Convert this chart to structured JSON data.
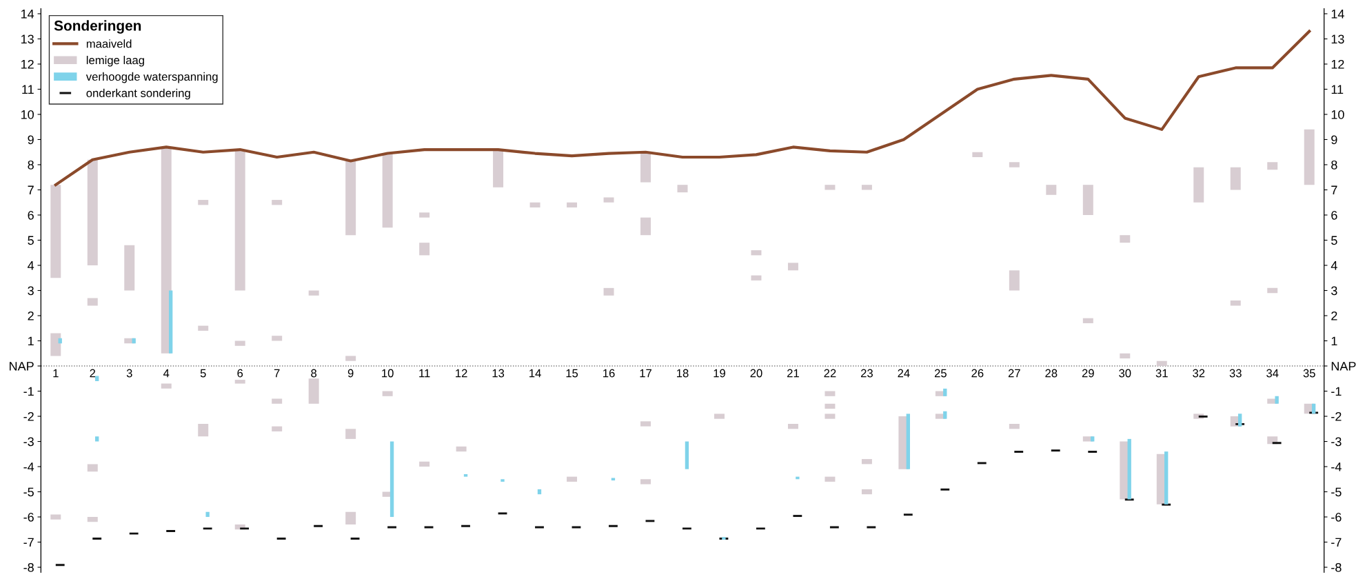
{
  "chart_data": {
    "type": "bar",
    "legend_title": "Sonderingen",
    "legend": "top left",
    "xlim": [
      0.6,
      35.4
    ],
    "xticks": [
      1,
      2,
      3,
      4,
      5,
      6,
      7,
      8,
      9,
      10,
      11,
      12,
      13,
      14,
      15,
      16,
      17,
      18,
      19,
      20,
      21,
      22,
      23,
      24,
      25,
      26,
      27,
      28,
      29,
      30,
      31,
      32,
      33,
      34,
      35
    ],
    "ylim": [
      -8.2,
      14.2
    ],
    "yticks": [
      -8,
      -7,
      -6,
      -5,
      -4,
      -3,
      -2,
      -1,
      {
        "value": 0,
        "label": "NAP"
      },
      1,
      2,
      3,
      4,
      5,
      6,
      7,
      8,
      9,
      10,
      11,
      12,
      13,
      14
    ],
    "y2lim": [
      -8.2,
      14.2
    ],
    "y2ticks": [
      -8,
      -7,
      -6,
      -5,
      -4,
      -3,
      -2,
      -1,
      {
        "value": 0,
        "label": "NAP"
      },
      1,
      2,
      3,
      4,
      5,
      6,
      7,
      8,
      9,
      10,
      11,
      12,
      13,
      14
    ],
    "ref_lines": [
      {
        "axis": "y",
        "value": 0,
        "color": "#777777",
        "line_style": "dotted"
      }
    ],
    "series": [
      {
        "name": "lemige laag",
        "color": "#d8cdd2",
        "x": [
          1,
          2,
          3,
          4,
          5,
          6,
          7,
          8,
          9,
          10,
          11,
          12,
          13,
          14,
          15,
          16,
          17,
          18,
          19,
          20,
          21,
          22,
          23,
          24,
          25,
          26,
          27,
          28,
          29,
          30,
          31,
          32,
          33,
          34,
          35
        ],
        "base": [
          3.5,
          4.0,
          3.0,
          0.5,
          6.4,
          3.0,
          6.4,
          2.8,
          5.2,
          5.5,
          5.9,
          -3.4,
          7.1,
          6.3,
          6.3,
          6.5,
          7.3,
          6.9,
          -2.1,
          4.4,
          3.8,
          7.0,
          7.0,
          -4.1,
          -1.2,
          8.3,
          7.9,
          6.8,
          6.0,
          4.9,
          0.0,
          6.5,
          7.0,
          7.8,
          7.2
        ],
        "values": [
          3.7,
          4.2,
          1.8,
          8.2,
          0.2,
          5.6,
          0.2,
          0.2,
          2.95,
          2.95,
          0.2,
          0.2,
          1.5,
          0.2,
          0.2,
          0.2,
          1.2,
          0.3,
          0.2,
          0.2,
          0.3,
          0.2,
          0.2,
          2.1,
          0.2,
          0.2,
          0.2,
          0.4,
          1.2,
          0.3,
          0.2,
          1.4,
          0.9,
          0.3,
          2.2
        ]
      },
      {
        "color": "#d8cdd2",
        "x": [
          1,
          2,
          3,
          4,
          5,
          6,
          7,
          8,
          9,
          10,
          11,
          15,
          16,
          17,
          20,
          21,
          22,
          23,
          25,
          27,
          29,
          30,
          31,
          32,
          33,
          34,
          35
        ],
        "base": [
          0.4,
          2.4,
          0.9,
          -0.9,
          1.4,
          0.8,
          1.0,
          -1.5,
          0.2,
          -1.2,
          4.4,
          -4.6,
          2.8,
          5.2,
          3.4,
          -2.5,
          -1.2,
          -3.9,
          -2.1,
          3.0,
          1.7,
          0.3,
          -5.5,
          -2.1,
          2.4,
          2.9,
          -1.9
        ],
        "values": [
          0.9,
          0.3,
          0.2,
          0.2,
          0.2,
          0.2,
          0.2,
          1.0,
          0.2,
          0.2,
          0.5,
          0.2,
          0.3,
          0.7,
          0.2,
          0.2,
          0.2,
          0.2,
          0.2,
          0.8,
          0.2,
          0.2,
          2.0,
          0.2,
          0.2,
          0.2,
          0.4
        ]
      },
      {
        "color": "#d8cdd2",
        "x": [
          1,
          2,
          5,
          6,
          7,
          9,
          10,
          11,
          17,
          22,
          23,
          27,
          29,
          30,
          33,
          34
        ],
        "base": [
          -6.1,
          -4.2,
          -2.8,
          -0.7,
          -1.5,
          -2.9,
          -5.2,
          -4.0,
          -2.4,
          -1.7,
          -5.1,
          -2.5,
          -3.0,
          -5.3,
          -2.4,
          -1.5
        ],
        "values": [
          0.2,
          0.3,
          0.5,
          0.15,
          0.2,
          0.4,
          0.2,
          0.2,
          0.2,
          0.2,
          0.2,
          0.2,
          0.2,
          2.3,
          0.4,
          0.2
        ]
      },
      {
        "color": "#d8cdd2",
        "x": [
          2,
          6,
          7,
          9,
          17,
          22,
          34
        ],
        "base": [
          -6.2,
          -6.5,
          -2.6,
          -6.3,
          -4.7,
          -2.1,
          -3.1
        ],
        "values": [
          0.2,
          0.2,
          0.2,
          0.5,
          0.2,
          0.2,
          0.3
        ]
      },
      {
        "color": "#d8cdd2",
        "x": [
          22
        ],
        "base": [
          -4.6
        ],
        "values": [
          0.2
        ]
      },
      {
        "name": "verhoogde waterspanning",
        "color": "#7fd3ea",
        "x": [
          1,
          2,
          3,
          4,
          5,
          10,
          12,
          13,
          14,
          16,
          18,
          19,
          21,
          24,
          25,
          29,
          30,
          31,
          33,
          34,
          35
        ],
        "base": [
          0.9,
          -0.6,
          0.9,
          0.5,
          -6.0,
          -6.0,
          -4.4,
          -4.6,
          -5.1,
          -4.55,
          -4.1,
          -6.9,
          -4.5,
          -4.1,
          -1.2,
          -3.0,
          -5.3,
          -5.5,
          -2.4,
          -1.5,
          -1.9
        ],
        "values": [
          0.2,
          0.2,
          0.2,
          2.5,
          0.2,
          3.0,
          0.1,
          0.1,
          0.2,
          0.1,
          1.1,
          0.1,
          0.1,
          2.2,
          0.3,
          0.2,
          2.4,
          2.1,
          0.5,
          0.3,
          0.4
        ]
      },
      {
        "color": "#7fd3ea",
        "x": [
          2,
          25
        ],
        "base": [
          -3.0,
          -2.1
        ],
        "values": [
          0.2,
          0.3
        ]
      },
      {
        "name": "onderkant sondering",
        "color": "#111111",
        "x": [
          1,
          2,
          3,
          4,
          5,
          6,
          7,
          8,
          9,
          10,
          11,
          12,
          13,
          14,
          15,
          16,
          17,
          18,
          19,
          20,
          21,
          22,
          23,
          24,
          25,
          26,
          27,
          28,
          29,
          30,
          31,
          32,
          33,
          34,
          35
        ],
        "base": [
          -7.95,
          -6.9,
          -6.7,
          -6.6,
          -6.5,
          -6.5,
          -6.9,
          -6.4,
          -6.9,
          -6.45,
          -6.45,
          -6.4,
          -5.9,
          -6.45,
          -6.45,
          -6.4,
          -6.2,
          -6.5,
          -6.9,
          -6.5,
          -6.0,
          -6.45,
          -6.45,
          -5.95,
          -4.95,
          -3.9,
          -3.45,
          -3.4,
          -3.45,
          -5.35,
          -5.55,
          -2.05,
          -2.35,
          -3.1,
          -1.9
        ],
        "values": [
          0.08,
          0.08,
          0.08,
          0.08,
          0.08,
          0.08,
          0.08,
          0.08,
          0.08,
          0.08,
          0.08,
          0.08,
          0.08,
          0.08,
          0.08,
          0.08,
          0.08,
          0.08,
          0.08,
          0.08,
          0.08,
          0.08,
          0.08,
          0.08,
          0.08,
          0.08,
          0.08,
          0.08,
          0.08,
          0.08,
          0.08,
          0.08,
          0.08,
          0.08,
          0.08
        ]
      },
      {
        "type": "line",
        "name": "maaiveld",
        "color": "#8b4a2b",
        "line_style": "solid",
        "x": [
          1,
          2,
          3,
          4,
          5,
          6,
          7,
          8,
          9,
          10,
          11,
          12,
          13,
          14,
          15,
          16,
          17,
          18,
          19,
          20,
          21,
          22,
          23,
          24,
          25,
          26,
          27,
          28,
          29,
          30,
          31,
          32,
          33,
          34,
          35
        ],
        "values": [
          7.2,
          8.2,
          8.5,
          8.7,
          8.5,
          8.6,
          8.3,
          8.5,
          8.15,
          8.45,
          8.6,
          8.6,
          8.6,
          8.45,
          8.35,
          8.45,
          8.5,
          8.3,
          8.3,
          8.4,
          8.7,
          8.55,
          8.5,
          9.0,
          10.0,
          11.0,
          11.4,
          11.55,
          11.4,
          9.85,
          9.4,
          11.5,
          11.85,
          11.85,
          13.3
        ]
      }
    ]
  }
}
